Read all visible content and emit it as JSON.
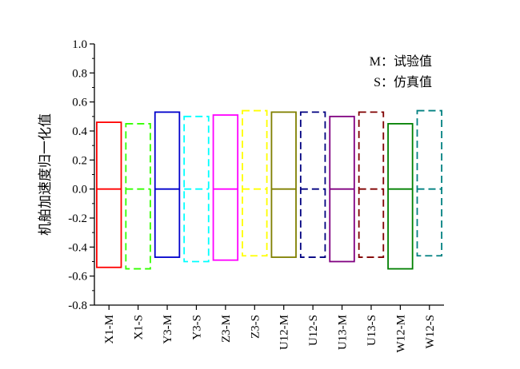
{
  "chart_data": {
    "type": "box",
    "ylabel": "机舶加速度归一化值",
    "ylim": [
      -0.8,
      1.0
    ],
    "ytick_step": 0.2,
    "ytick_labels": [
      "-0.8",
      "-0.6",
      "-0.4",
      "-0.2",
      "0.0",
      "0.2",
      "0.4",
      "0.6",
      "0.8",
      "1.0"
    ],
    "categories": [
      "X1-M",
      "X1-S",
      "Y3-M",
      "Y3-S",
      "Z3-M",
      "Z3-S",
      "U12-M",
      "U12-S",
      "U13-M",
      "U13-S",
      "W12-M",
      "W12-S"
    ],
    "boxes": [
      {
        "label": "X1-M",
        "min": -0.54,
        "median": 0.0,
        "max": 0.46,
        "color": "#ff0000",
        "style": "solid"
      },
      {
        "label": "X1-S",
        "min": -0.55,
        "median": 0.0,
        "max": 0.45,
        "color": "#33ff00",
        "style": "dashed"
      },
      {
        "label": "Y3-M",
        "min": -0.47,
        "median": 0.0,
        "max": 0.53,
        "color": "#0000cc",
        "style": "solid"
      },
      {
        "label": "Y3-S",
        "min": -0.5,
        "median": 0.0,
        "max": 0.5,
        "color": "#00ffff",
        "style": "dashed"
      },
      {
        "label": "Z3-M",
        "min": -0.49,
        "median": 0.0,
        "max": 0.51,
        "color": "#ff00ff",
        "style": "solid"
      },
      {
        "label": "Z3-S",
        "min": -0.46,
        "median": 0.0,
        "max": 0.54,
        "color": "#ffff00",
        "style": "dashed"
      },
      {
        "label": "U12-M",
        "min": -0.47,
        "median": 0.0,
        "max": 0.53,
        "color": "#808000",
        "style": "solid"
      },
      {
        "label": "U12-S",
        "min": -0.47,
        "median": 0.0,
        "max": 0.53,
        "color": "#000080",
        "style": "dashed"
      },
      {
        "label": "U13-M",
        "min": -0.5,
        "median": 0.0,
        "max": 0.5,
        "color": "#800080",
        "style": "solid"
      },
      {
        "label": "U13-S",
        "min": -0.47,
        "median": 0.0,
        "max": 0.53,
        "color": "#800000",
        "style": "dashed"
      },
      {
        "label": "W12-M",
        "min": -0.55,
        "median": 0.0,
        "max": 0.45,
        "color": "#008000",
        "style": "solid"
      },
      {
        "label": "W12-S",
        "min": -0.46,
        "median": 0.0,
        "max": 0.54,
        "color": "#008080",
        "style": "dashed"
      }
    ],
    "legend": {
      "position": "top-right",
      "entries": [
        "M：试验值",
        "S：仿真值"
      ]
    },
    "grid": false
  }
}
